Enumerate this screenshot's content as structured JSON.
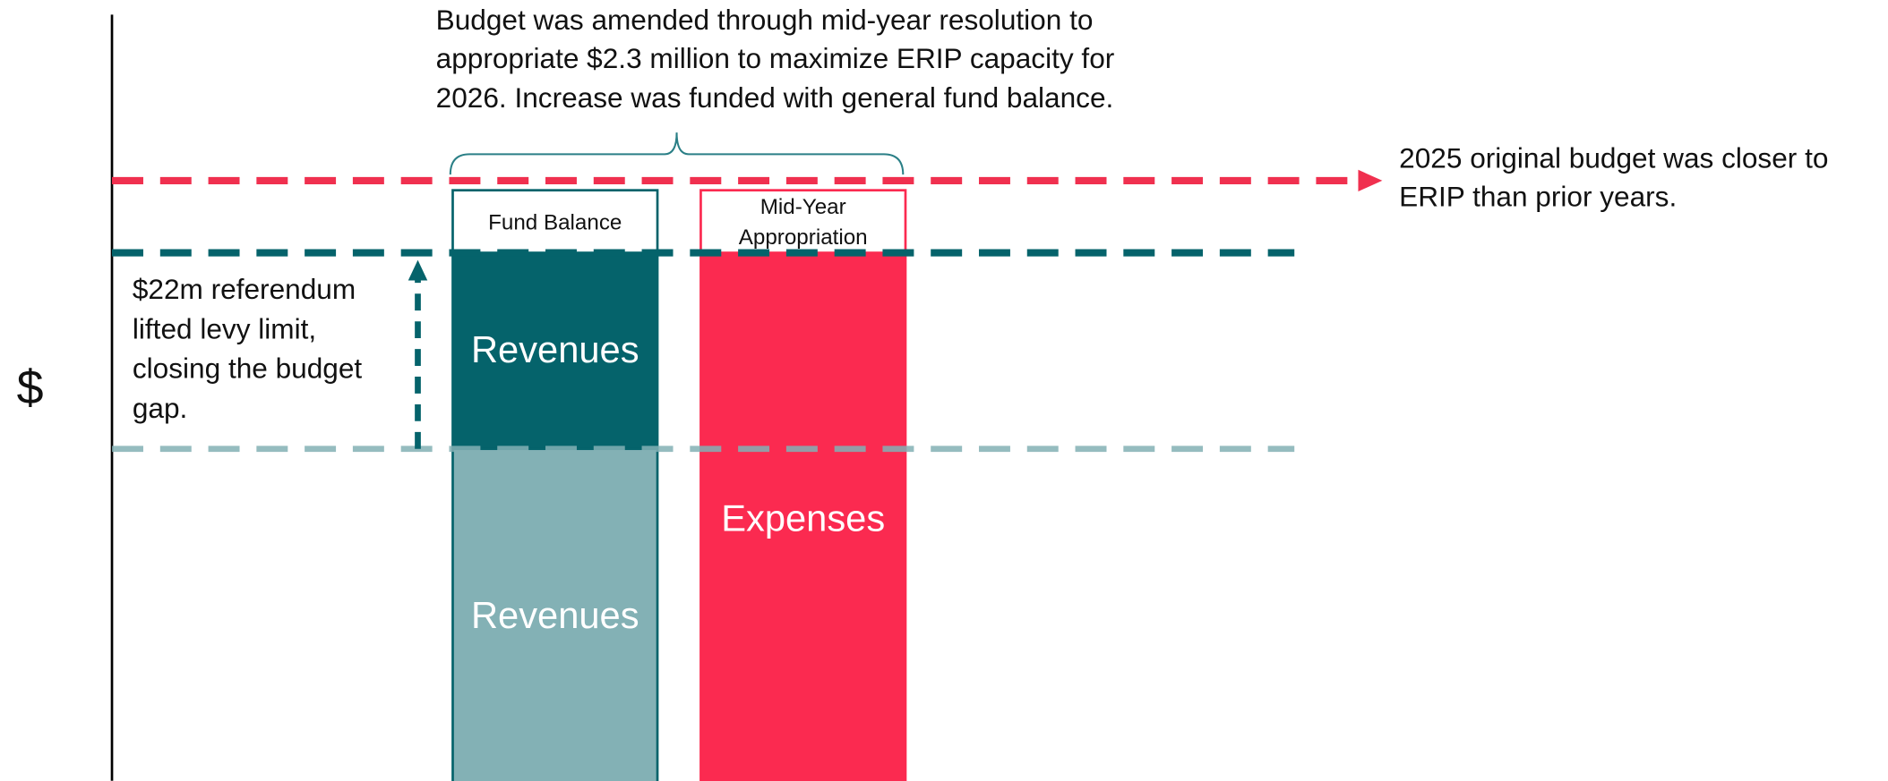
{
  "axis_label": "$",
  "annotations": {
    "top": [
      "Budget was amended through mid-year resolution to",
      "appropriate $2.3 million to maximize ERIP capacity for",
      "2026. Increase was funded with general fund balance."
    ],
    "right": [
      "2025 original budget was closer to",
      "ERIP than prior years."
    ],
    "left": [
      "$22m referendum",
      "lifted levy limit,",
      "closing the budget",
      "gap."
    ]
  },
  "bars": [
    {
      "header": [
        "Fund Balance"
      ],
      "segments": [
        "Revenues",
        "Revenues"
      ]
    },
    {
      "header": [
        "Mid-Year",
        "Appropriation"
      ],
      "segments": [
        "Expenses"
      ]
    }
  ]
}
